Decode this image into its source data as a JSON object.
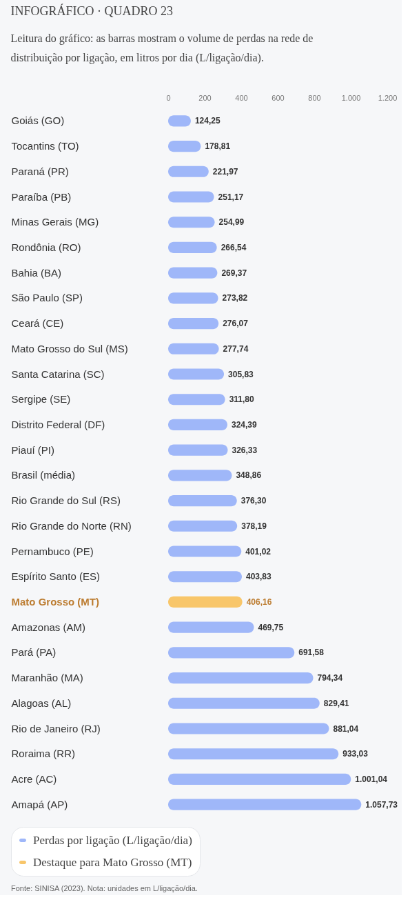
{
  "chart_data": {
    "type": "bar",
    "orientation": "horizontal",
    "stacked": true,
    "title": "INFOGRÁFICO · QUADRO 23",
    "subtitle": "Leitura do gráfico: as barras mostram o volume de perdas na rede de distribuição por ligação, em litros por dia (L/ligação/dia).",
    "categories": [
      "Goiás (GO)",
      "Tocantins (TO)",
      "Paraná (PR)",
      "Paraíba (PB)",
      "Minas Gerais (MG)",
      "Rondônia (RO)",
      "Bahia (BA)",
      "São Paulo (SP)",
      "Ceará (CE)",
      "Mato Grosso do Sul (MS)",
      "Santa Catarina (SC)",
      "Sergipe (SE)",
      "Distrito Federal (DF)",
      "Piauí (PI)",
      "Brasil (média)",
      "Rio Grande do Sul (RS)",
      "Rio Grande do Norte (RN)",
      "Pernambuco (PE)",
      "Espírito Santo (ES)",
      "Mato Grosso (MT)",
      "Amazonas (AM)",
      "Pará (PA)",
      "Maranhão (MA)",
      "Alagoas (AL)",
      "Rio de Janeiro (RJ)",
      "Roraima (RR)",
      "Acre (AC)",
      "Amapá (AP)"
    ],
    "series": [
      {
        "name": "Perdas por ligação (L/ligação/dia)",
        "color": "#9fb7f9",
        "values": [
          124.25,
          178.81,
          221.97,
          251.17,
          254.99,
          266.54,
          269.37,
          273.82,
          276.07,
          277.74,
          305.83,
          311.8,
          324.39,
          326.33,
          348.86,
          376.3,
          378.19,
          401.02,
          403.83,
          null,
          469.75,
          691.58,
          794.34,
          829.41,
          881.04,
          933.03,
          1001.04,
          1057.73
        ],
        "value_labels": [
          "124,25",
          "178,81",
          "221,97",
          "251,17",
          "254,99",
          "266,54",
          "269,37",
          "273,82",
          "276,07",
          "277,74",
          "305,83",
          "311,80",
          "324,39",
          "326,33",
          "348,86",
          "376,30",
          "378,19",
          "401,02",
          "403,83",
          null,
          "469,75",
          "691,58",
          "794,34",
          "829,41",
          "881,04",
          "933,03",
          "1.001,04",
          "1.057,73"
        ]
      },
      {
        "name": "Destaque para Mato Grosso (MT)",
        "color": "#f8c66a",
        "values": [
          null,
          null,
          null,
          null,
          null,
          null,
          null,
          null,
          null,
          null,
          null,
          null,
          null,
          null,
          null,
          null,
          null,
          null,
          null,
          406.16,
          null,
          null,
          null,
          null,
          null,
          null,
          null,
          null
        ],
        "value_labels": [
          null,
          null,
          null,
          null,
          null,
          null,
          null,
          null,
          null,
          null,
          null,
          null,
          null,
          null,
          null,
          null,
          null,
          null,
          null,
          "406,16",
          null,
          null,
          null,
          null,
          null,
          null,
          null,
          null
        ]
      }
    ],
    "xlim": [
      0,
      1200
    ],
    "xticks": [
      0,
      200,
      400,
      600,
      800,
      {
        "value": 1000,
        "label": "1.000"
      },
      {
        "value": 1200,
        "label": "1.200"
      }
    ],
    "grid": false,
    "legend": "bottom left",
    "annotations": [
      "Fonte: SINISA (2023). Nota: unidades em L/ligação/dia."
    ]
  }
}
